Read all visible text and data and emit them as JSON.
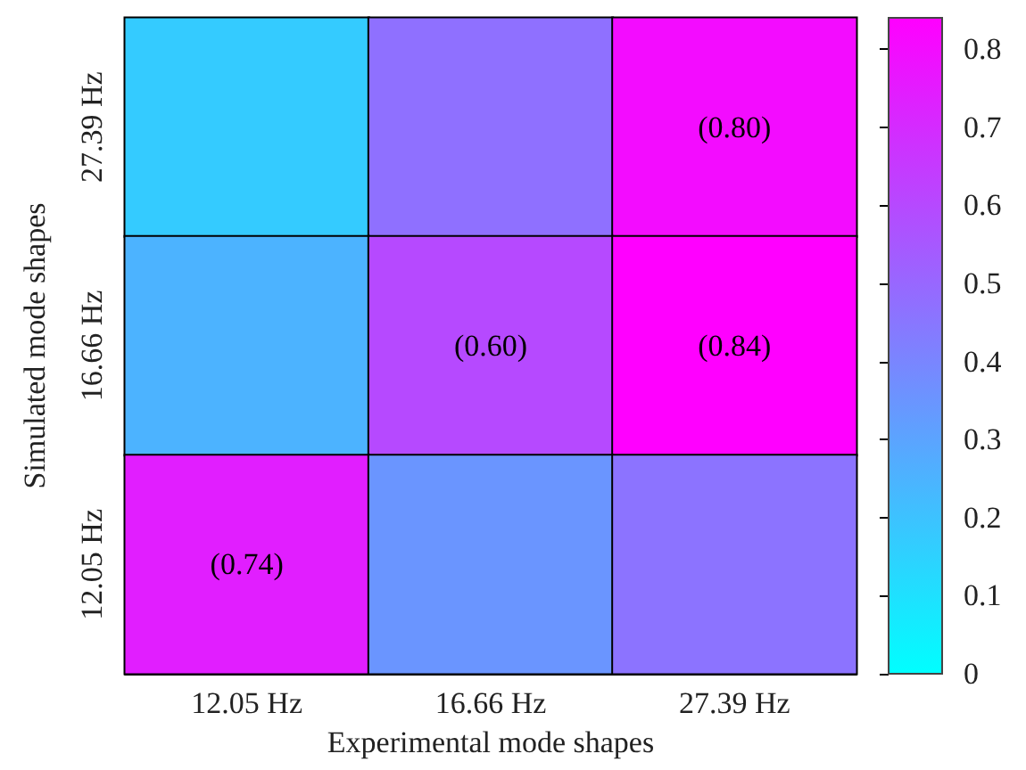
{
  "chart_data": {
    "type": "heatmap",
    "xlabel": "Experimental mode shapes",
    "ylabel": "Simulated mode shapes",
    "categories": [
      "12.05 Hz",
      "16.66 Hz",
      "27.39 Hz"
    ],
    "y_categories": [
      "27.39 Hz",
      "16.66 Hz",
      "12.05 Hz"
    ],
    "cells": [
      [
        0.17,
        0.47,
        0.8
      ],
      [
        0.25,
        0.6,
        0.84
      ],
      [
        0.74,
        0.35,
        0.46
      ]
    ],
    "cell_labels": [
      [
        null,
        null,
        "(0.80)"
      ],
      [
        null,
        "(0.60)",
        "(0.84)"
      ],
      [
        "(0.74)",
        null,
        null
      ]
    ],
    "clim": [
      0,
      0.84
    ],
    "cticks": [
      0,
      0.1,
      0.2,
      0.3,
      0.4,
      0.5,
      0.6,
      0.7,
      0.8
    ]
  }
}
